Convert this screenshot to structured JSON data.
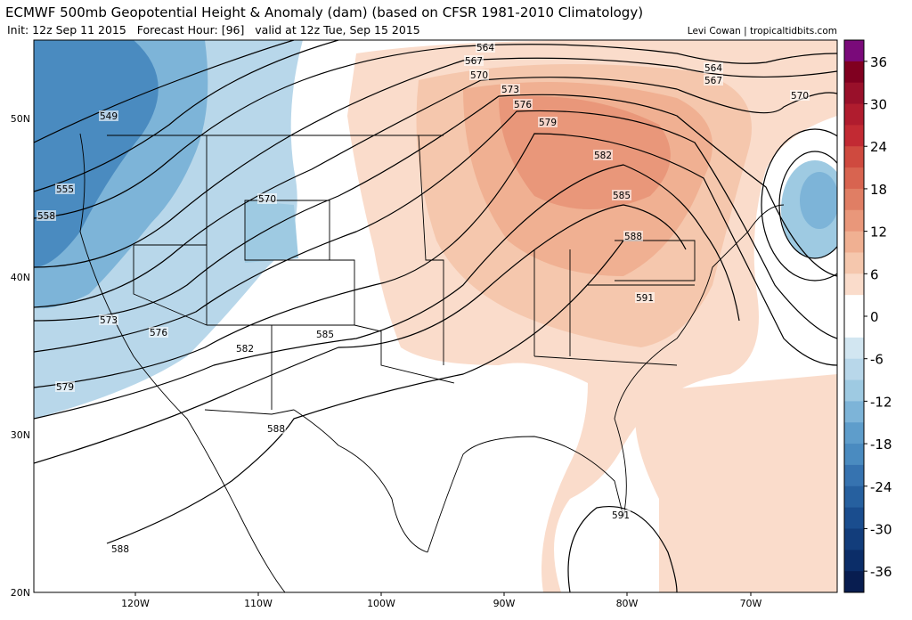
{
  "header": {
    "title": "ECMWF 500mb Geopotential Height & Anomaly (dam) (based on CFSR 1981-2010 Climatology)",
    "subtitle": "Init: 12z Sep 11 2015   Forecast Hour: [96]   valid at 12z Tue, Sep 15 2015",
    "credit": "Levi Cowan | tropicaltidbits.com"
  },
  "map": {
    "lat_labels": [
      "50N",
      "40N",
      "30N",
      "20N"
    ],
    "lon_labels": [
      "120W",
      "110W",
      "100W",
      "90W",
      "80W",
      "70W"
    ],
    "contour_labels": [
      "564",
      "567",
      "570",
      "573",
      "576",
      "579",
      "582",
      "585",
      "588",
      "591",
      "591",
      "564",
      "567",
      "570",
      "549",
      "555",
      "558",
      "570",
      "573",
      "576",
      "582",
      "585",
      "579",
      "588",
      "588"
    ]
  },
  "colorbar": {
    "lim": [
      -39,
      39
    ],
    "ticks": [
      36,
      30,
      24,
      18,
      12,
      6,
      0,
      -6,
      -12,
      -18,
      -24,
      -30,
      -36
    ],
    "colors": [
      "#7a0a7a",
      "#800020",
      "#99102a",
      "#b01c2e",
      "#c22a33",
      "#cf4a3f",
      "#d86450",
      "#e07e64",
      "#e9977a",
      "#f0b092",
      "#f5c7ad",
      "#fadccb",
      "#ffffff",
      "#ffffff",
      "#d2e6f1",
      "#b8d7ea",
      "#9ecae2",
      "#7db4d8",
      "#5e9dcb",
      "#4a8bc0",
      "#3673b0",
      "#26609f",
      "#1a4d8e",
      "#123d7b",
      "#0b2d68",
      "#081d50"
    ]
  }
}
